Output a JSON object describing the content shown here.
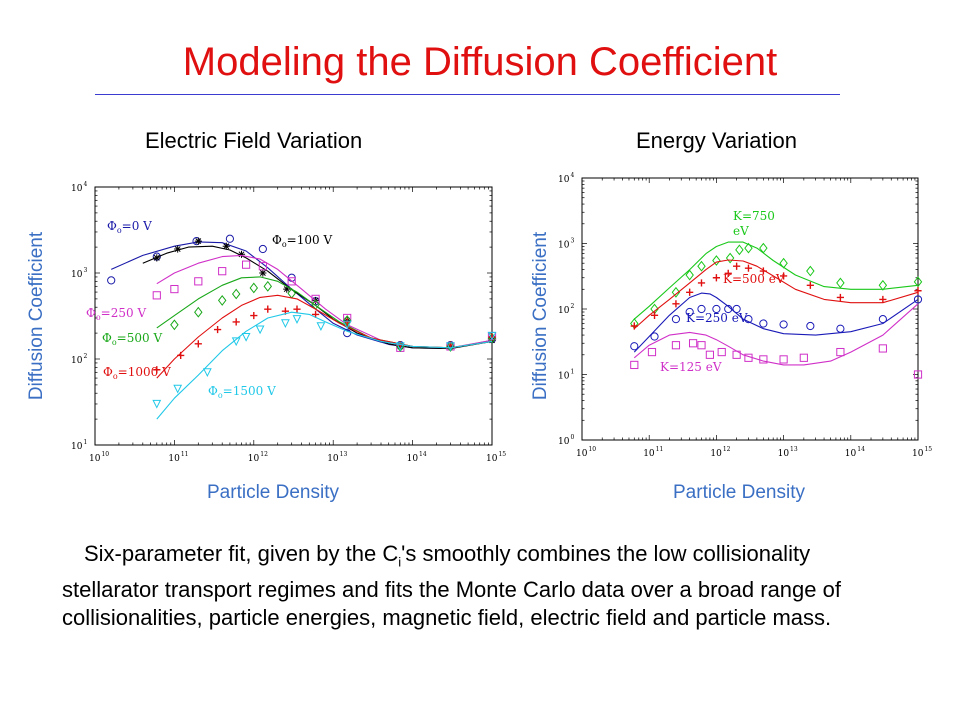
{
  "title": "Modeling the Diffusion Coefficient",
  "caption": {
    "before_sub": "Six-parameter fit, given by the C",
    "sub": "i",
    "after_sub": "'s smoothly combines the low collisionality stellarator transport regimes and fits the Monte Carlo data over a broad range of collisionalities, particle energies, magnetic field, electric field and particle mass."
  },
  "colors": {
    "title": "#e01010",
    "axis_label": "#3a6fc4",
    "rule": "#3b3bd0"
  },
  "chart_data": [
    {
      "type": "scatter",
      "title": "Electric Field Variation",
      "xlabel": "Particle Density",
      "ylabel": "Diffusion Coefficient",
      "xscale": "log",
      "yscale": "log",
      "xlim": [
        10000000000.0,
        1000000000000000.0
      ],
      "ylim": [
        10,
        10000
      ],
      "x_ticks": [
        {
          "base": "10",
          "exp": "10"
        },
        {
          "base": "10",
          "exp": "11"
        },
        {
          "base": "10",
          "exp": "12"
        },
        {
          "base": "10",
          "exp": "13"
        },
        {
          "base": "10",
          "exp": "14"
        },
        {
          "base": "10",
          "exp": "15"
        }
      ],
      "y_ticks": [
        {
          "base": "10",
          "exp": "1"
        },
        {
          "base": "10",
          "exp": "2"
        },
        {
          "base": "10",
          "exp": "3"
        },
        {
          "base": "10",
          "exp": "4"
        }
      ],
      "series": [
        {
          "name": "Φₒ=0 V",
          "label_sym": "Φ",
          "label_sub": "o",
          "label_text": "=0 V",
          "color": "#1a1aa8",
          "marker": "circle",
          "x": [
            16000000000.0,
            60000000000.0,
            190000000000.0,
            500000000000.0,
            1300000000000.0,
            3000000000000.0,
            6000000000000.0,
            15000000000000.0,
            70000000000000.0,
            300000000000000.0,
            1000000000000000.0
          ],
          "y": [
            820,
            1550,
            2350,
            2500,
            1900,
            880,
            470,
            200,
            145,
            145,
            170
          ],
          "fit_x": [
            16000000000.0,
            40000000000.0,
            100000000000.0,
            200000000000.0,
            400000000000.0,
            800000000000.0,
            1500000000000.0,
            3000000000000.0,
            6000000000000.0,
            10000000000000.0,
            20000000000000.0,
            50000000000000.0,
            100000000000000.0,
            300000000000000.0,
            1000000000000000.0
          ],
          "fit_y": [
            1100,
            1600,
            2050,
            2300,
            2250,
            1800,
            1150,
            650,
            380,
            260,
            190,
            148,
            135,
            132,
            165
          ]
        },
        {
          "name": "Φₒ=100 V",
          "label_sym": "Φ",
          "label_sub": "o",
          "label_text": "=100 V",
          "color": "#000000",
          "marker": "star",
          "x": [
            60000000000.0,
            110000000000.0,
            200000000000.0,
            450000000000.0,
            700000000000.0,
            1300000000000.0,
            2600000000000.0,
            6000000000000.0,
            15000000000000.0,
            70000000000000.0,
            300000000000000.0,
            1000000000000000.0
          ],
          "y": [
            1500,
            1900,
            2350,
            2050,
            1650,
            1000,
            650,
            480,
            280,
            140,
            140,
            165
          ],
          "fit_x": [
            40000000000.0,
            80000000000.0,
            150000000000.0,
            300000000000.0,
            500000000000.0,
            800000000000.0,
            1500000000000.0,
            3000000000000.0,
            6000000000000.0,
            10000000000000.0,
            20000000000000.0,
            50000000000000.0,
            100000000000000.0,
            300000000000000.0,
            1000000000000000.0
          ],
          "fit_y": [
            1300,
            1700,
            2000,
            2050,
            1850,
            1500,
            1050,
            640,
            420,
            290,
            200,
            150,
            135,
            132,
            160
          ]
        },
        {
          "name": "Φₒ=250 V",
          "label_sym": "Φ",
          "label_sub": "o",
          "label_text": "=250 V",
          "color": "#d030c8",
          "marker": "square",
          "x": [
            60000000000.0,
            100000000000.0,
            200000000000.0,
            400000000000.0,
            800000000000.0,
            1300000000000.0,
            3000000000000.0,
            6000000000000.0,
            15000000000000.0,
            70000000000000.0,
            300000000000000.0,
            1000000000000000.0
          ],
          "y": [
            550,
            650,
            800,
            1050,
            1250,
            1200,
            800,
            500,
            300,
            135,
            140,
            185
          ],
          "fit_x": [
            60000000000.0,
            100000000000.0,
            200000000000.0,
            400000000000.0,
            700000000000.0,
            1200000000000.0,
            2000000000000.0,
            4000000000000.0,
            8000000000000.0,
            15000000000000.0,
            40000000000000.0,
            100000000000000.0,
            300000000000000.0,
            1000000000000000.0
          ],
          "fit_y": [
            750,
            1000,
            1300,
            1550,
            1600,
            1450,
            1100,
            650,
            380,
            250,
            165,
            140,
            135,
            165
          ]
        },
        {
          "name": "Φₒ=500 V",
          "label_sym": "Φ",
          "label_sub": "o",
          "label_text": "=500 V",
          "color": "#1aa81a",
          "marker": "diamond",
          "x": [
            100000000000.0,
            200000000000.0,
            400000000000.0,
            600000000000.0,
            1000000000000.0,
            1500000000000.0,
            3000000000000.0,
            6000000000000.0,
            15000000000000.0,
            70000000000000.0,
            300000000000000.0,
            1000000000000000.0
          ],
          "y": [
            250,
            350,
            480,
            570,
            670,
            700,
            580,
            430,
            280,
            140,
            140,
            175
          ],
          "fit_x": [
            60000000000.0,
            100000000000.0,
            200000000000.0,
            400000000000.0,
            700000000000.0,
            1200000000000.0,
            2000000000000.0,
            3500000000000.0,
            6000000000000.0,
            12000000000000.0,
            30000000000000.0,
            100000000000000.0,
            300000000000000.0,
            1000000000000000.0
          ],
          "fit_y": [
            230,
            320,
            500,
            720,
            880,
            900,
            800,
            600,
            420,
            270,
            175,
            140,
            135,
            160
          ]
        },
        {
          "name": "Φₒ=1000 V",
          "label_sym": "Φ",
          "label_sub": "o",
          "label_text": "=1000 V",
          "color": "#e01010",
          "marker": "plus",
          "x": [
            60000000000.0,
            120000000000.0,
            200000000000.0,
            350000000000.0,
            600000000000.0,
            1000000000000.0,
            1500000000000.0,
            2500000000000.0,
            3500000000000.0,
            6000000000000.0,
            15000000000000.0,
            70000000000000.0,
            300000000000000.0,
            1000000000000000.0
          ],
          "y": [
            75,
            110,
            150,
            220,
            270,
            320,
            380,
            360,
            380,
            330,
            270,
            145,
            145,
            180
          ],
          "fit_x": [
            60000000000.0,
            100000000000.0,
            200000000000.0,
            400000000000.0,
            700000000000.0,
            1200000000000.0,
            2000000000000.0,
            3500000000000.0,
            6000000000000.0,
            12000000000000.0,
            30000000000000.0,
            100000000000000.0,
            300000000000000.0,
            1000000000000000.0
          ],
          "fit_y": [
            60,
            100,
            180,
            300,
            420,
            520,
            550,
            500,
            380,
            260,
            175,
            140,
            135,
            160
          ]
        },
        {
          "name": "Φₒ=1500 V",
          "label_sym": "Φ",
          "label_sub": "o",
          "label_text": "=1500 V",
          "color": "#20c8e8",
          "marker": "triangle-down",
          "x": [
            60000000000.0,
            110000000000.0,
            260000000000.0,
            600000000000.0,
            800000000000.0,
            1200000000000.0,
            2500000000000.0,
            3500000000000.0,
            7000000000000.0,
            15000000000000.0,
            70000000000000.0,
            300000000000000.0,
            1000000000000000.0
          ],
          "y": [
            30,
            45,
            70,
            160,
            180,
            220,
            260,
            290,
            240,
            250,
            140,
            140,
            185
          ],
          "fit_x": [
            60000000000.0,
            100000000000.0,
            200000000000.0,
            400000000000.0,
            800000000000.0,
            1500000000000.0,
            3000000000000.0,
            5000000000000.0,
            8000000000000.0,
            15000000000000.0,
            40000000000000.0,
            100000000000000.0,
            300000000000000.0,
            1000000000000000.0
          ],
          "fit_y": [
            20,
            35,
            65,
            125,
            210,
            300,
            350,
            330,
            270,
            210,
            160,
            140,
            135,
            160
          ]
        }
      ]
    },
    {
      "type": "scatter",
      "title": "Energy Variation",
      "xlabel": "Particle Density",
      "ylabel": "Diffusion Coefficient",
      "xscale": "log",
      "yscale": "log",
      "xlim": [
        10000000000.0,
        1000000000000000.0
      ],
      "ylim": [
        1,
        10000
      ],
      "x_ticks": [
        {
          "base": "10",
          "exp": "10"
        },
        {
          "base": "10",
          "exp": "11"
        },
        {
          "base": "10",
          "exp": "12"
        },
        {
          "base": "10",
          "exp": "13"
        },
        {
          "base": "10",
          "exp": "14"
        },
        {
          "base": "10",
          "exp": "15"
        }
      ],
      "y_ticks": [
        {
          "base": "10",
          "exp": "0"
        },
        {
          "base": "10",
          "exp": "1"
        },
        {
          "base": "10",
          "exp": "2"
        },
        {
          "base": "10",
          "exp": "3"
        },
        {
          "base": "10",
          "exp": "4"
        }
      ],
      "series": [
        {
          "name": "K=750 eV",
          "label_lines": [
            "K=750",
            "eV"
          ],
          "color": "#1ac81a",
          "marker": "diamond",
          "x": [
            60000000000.0,
            120000000000.0,
            250000000000.0,
            400000000000.0,
            600000000000.0,
            1000000000000.0,
            1600000000000.0,
            2200000000000.0,
            3000000000000.0,
            5000000000000.0,
            10000000000000.0,
            25000000000000.0,
            70000000000000.0,
            300000000000000.0,
            1000000000000000.0
          ],
          "y": [
            60,
            100,
            180,
            330,
            450,
            550,
            600,
            800,
            850,
            850,
            500,
            380,
            250,
            230,
            260
          ],
          "fit_x": [
            60000000000.0,
            100000000000.0,
            200000000000.0,
            400000000000.0,
            700000000000.0,
            1000000000000.0,
            1500000000000.0,
            2500000000000.0,
            4000000000000.0,
            7000000000000.0,
            15000000000000.0,
            40000000000000.0,
            100000000000000.0,
            300000000000000.0,
            1000000000000000.0
          ],
          "fit_y": [
            70,
            110,
            210,
            400,
            700,
            900,
            1050,
            1050,
            850,
            550,
            330,
            220,
            200,
            200,
            230
          ]
        },
        {
          "name": "K=500 eV",
          "label_lines": [
            "K=500 eV"
          ],
          "color": "#e01010",
          "marker": "plus",
          "x": [
            60000000000.0,
            120000000000.0,
            250000000000.0,
            400000000000.0,
            600000000000.0,
            1000000000000.0,
            1500000000000.0,
            2000000000000.0,
            3000000000000.0,
            5000000000000.0,
            10000000000000.0,
            25000000000000.0,
            70000000000000.0,
            300000000000000.0,
            1000000000000000.0
          ],
          "y": [
            55,
            80,
            120,
            180,
            250,
            300,
            350,
            450,
            420,
            380,
            320,
            230,
            150,
            140,
            190
          ],
          "fit_x": [
            60000000000.0,
            100000000000.0,
            200000000000.0,
            400000000000.0,
            700000000000.0,
            1000000000000.0,
            1500000000000.0,
            2500000000000.0,
            4000000000000.0,
            7000000000000.0,
            15000000000000.0,
            40000000000000.0,
            100000000000000.0,
            300000000000000.0,
            1000000000000000.0
          ],
          "fit_y": [
            50,
            80,
            140,
            250,
            400,
            520,
            560,
            540,
            450,
            320,
            200,
            140,
            125,
            125,
            180
          ]
        },
        {
          "name": "K=250 eV",
          "label_lines": [
            "K=250 eV"
          ],
          "color": "#1a1ab8",
          "marker": "circle",
          "x": [
            60000000000.0,
            120000000000.0,
            250000000000.0,
            400000000000.0,
            600000000000.0,
            1000000000000.0,
            1500000000000.0,
            2000000000000.0,
            3000000000000.0,
            5000000000000.0,
            10000000000000.0,
            25000000000000.0,
            70000000000000.0,
            300000000000000.0,
            1000000000000000.0
          ],
          "y": [
            27,
            38,
            70,
            90,
            100,
            100,
            100,
            100,
            70,
            60,
            58,
            55,
            50,
            70,
            140
          ],
          "fit_x": [
            60000000000.0,
            100000000000.0,
            200000000000.0,
            400000000000.0,
            600000000000.0,
            800000000000.0,
            1000000000000.0,
            1500000000000.0,
            2500000000000.0,
            5000000000000.0,
            10000000000000.0,
            30000000000000.0,
            100000000000000.0,
            300000000000000.0,
            1000000000000000.0
          ],
          "fit_y": [
            22,
            38,
            80,
            150,
            175,
            170,
            150,
            110,
            70,
            50,
            42,
            40,
            45,
            60,
            140
          ]
        },
        {
          "name": "K=125 eV",
          "label_lines": [
            "K=125 eV"
          ],
          "color": "#d030c8",
          "marker": "square",
          "x": [
            60000000000.0,
            110000000000.0,
            250000000000.0,
            450000000000.0,
            600000000000.0,
            800000000000.0,
            1200000000000.0,
            2000000000000.0,
            3000000000000.0,
            5000000000000.0,
            10000000000000.0,
            20000000000000.0,
            70000000000000.0,
            300000000000000.0,
            1000000000000000.0
          ],
          "y": [
            14,
            22,
            28,
            30,
            28,
            20,
            22,
            20,
            18,
            17,
            17,
            18,
            22,
            25,
            10
          ],
          "fit_x": [
            60000000000.0,
            100000000000.0,
            200000000000.0,
            400000000000.0,
            700000000000.0,
            1000000000000.0,
            1500000000000.0,
            2500000000000.0,
            5000000000000.0,
            10000000000000.0,
            20000000000000.0,
            50000000000000.0,
            100000000000000.0,
            300000000000000.0,
            1000000000000000.0
          ],
          "fit_y": [
            18,
            28,
            40,
            44,
            40,
            34,
            27,
            20,
            16,
            14,
            14,
            16,
            22,
            40,
            120
          ]
        }
      ]
    }
  ]
}
